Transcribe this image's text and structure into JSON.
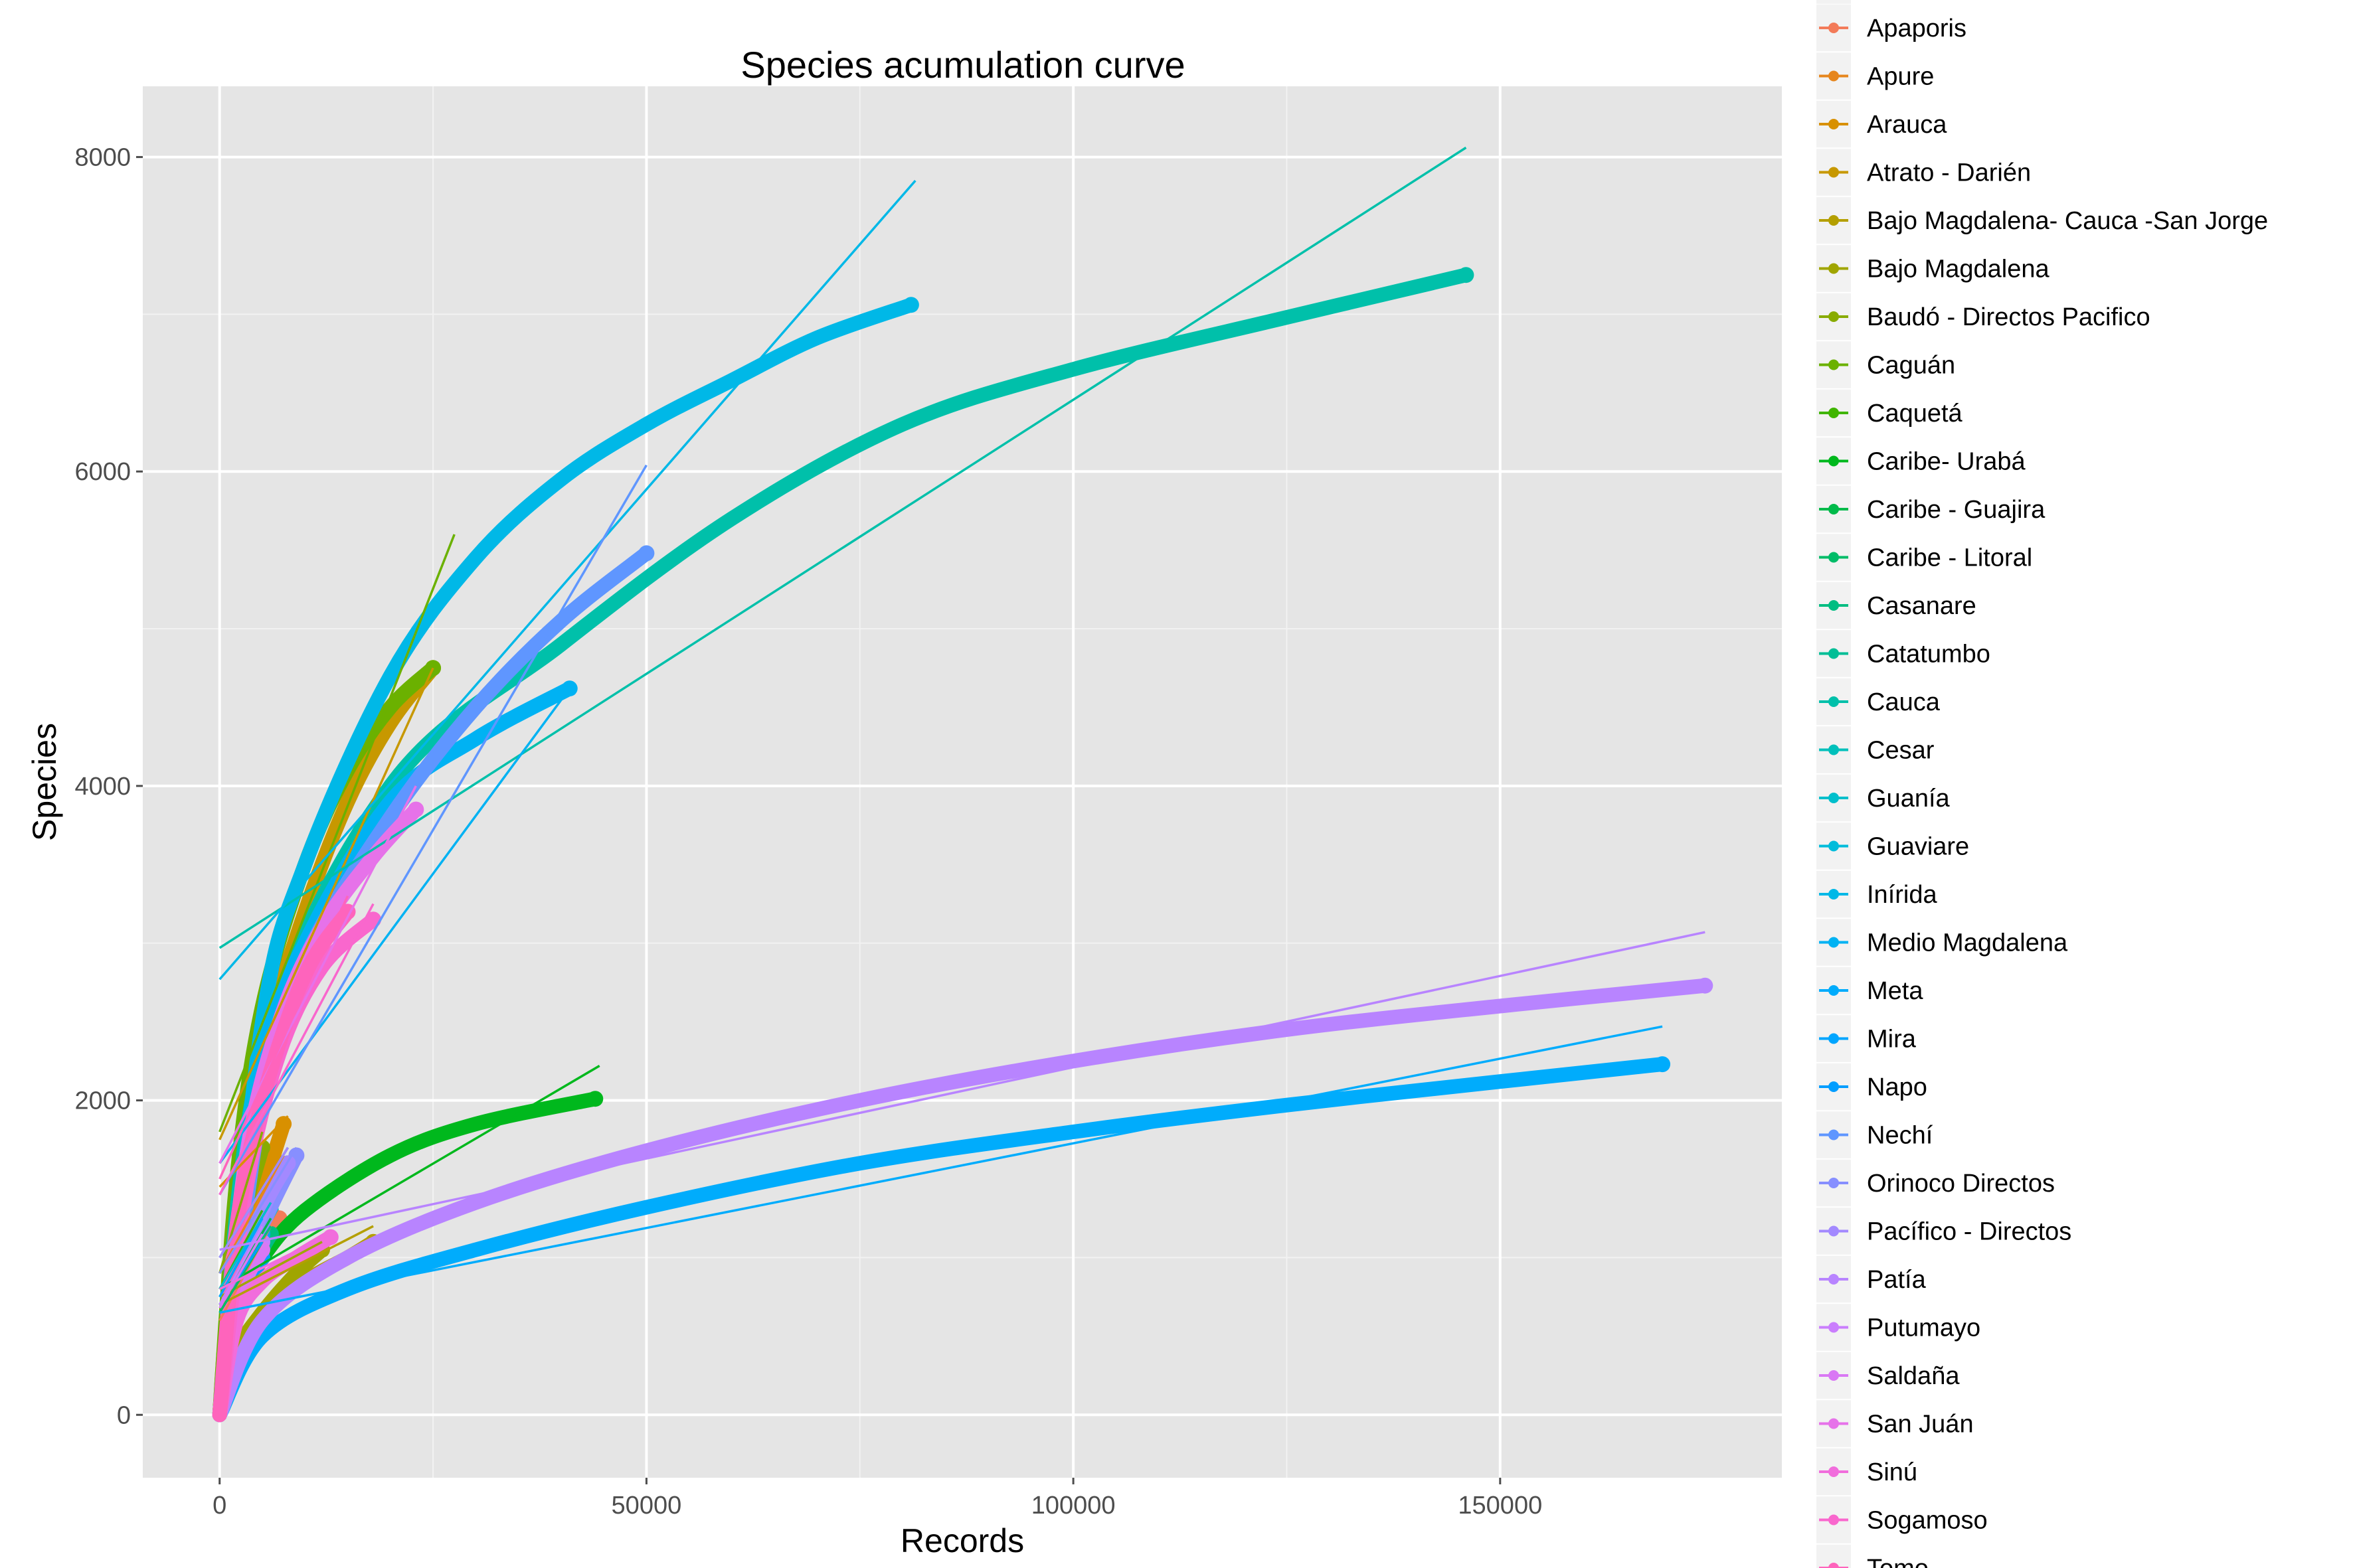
{
  "chart_data": {
    "type": "scatter",
    "title": "Species acumulation curve",
    "xlabel": "Records",
    "ylabel": "Species",
    "xlim": [
      -9000,
      183000
    ],
    "ylim": [
      -400,
      8450
    ],
    "x_ticks": [
      0,
      50000,
      100000,
      150000
    ],
    "x_tick_labels": [
      "0",
      "50000",
      "100000",
      "150000"
    ],
    "y_ticks": [
      0,
      2000,
      4000,
      6000,
      8000
    ],
    "y_tick_labels": [
      "0",
      "2000",
      "4000",
      "6000",
      "8000"
    ],
    "grid": true,
    "background": "#e5e5e5",
    "legend_position": "right",
    "legend_partially_cut": "top",
    "description": "Each series is a thick accumulation curve (points) with a thin straight fitted line in the same color",
    "series": [
      {
        "name": "Apaporis",
        "color": "#f37b59",
        "curve": [
          [
            0,
            0
          ],
          [
            1000,
            450
          ],
          [
            3000,
            780
          ],
          [
            5500,
            1050
          ],
          [
            7000,
            1250
          ]
        ],
        "fit": [
          [
            0,
            600
          ],
          [
            7000,
            1300
          ]
        ]
      },
      {
        "name": "Apure",
        "color": "#e6861d",
        "curve": [
          [
            0,
            0
          ],
          [
            1000,
            520
          ],
          [
            3000,
            950
          ],
          [
            5500,
            1400
          ],
          [
            7000,
            1600
          ]
        ],
        "fit": [
          [
            0,
            900
          ],
          [
            7500,
            1650
          ]
        ]
      },
      {
        "name": "Arauca",
        "color": "#d89000",
        "curve": [
          [
            0,
            0
          ],
          [
            1000,
            550
          ],
          [
            3000,
            1000
          ],
          [
            5500,
            1500
          ],
          [
            7500,
            1850
          ]
        ],
        "fit": [
          [
            0,
            1450
          ],
          [
            8000,
            1900
          ]
        ]
      },
      {
        "name": "Atrato - Darién",
        "color": "#c79800",
        "curve": [
          [
            0,
            0
          ],
          [
            2000,
            1300
          ],
          [
            5000,
            2300
          ],
          [
            10000,
            3200
          ],
          [
            15000,
            3900
          ],
          [
            20000,
            4400
          ],
          [
            25000,
            4750
          ]
        ],
        "fit": [
          [
            0,
            1750
          ],
          [
            25000,
            4750
          ]
        ]
      },
      {
        "name": "Bajo Magdalena- Cauca -San Jorge",
        "color": "#b49f00",
        "curve": [
          [
            0,
            0
          ],
          [
            2000,
            380
          ],
          [
            5000,
            620
          ],
          [
            10000,
            850
          ],
          [
            15000,
            1000
          ],
          [
            18000,
            1100
          ]
        ],
        "fit": [
          [
            0,
            700
          ],
          [
            18000,
            1200
          ]
        ]
      },
      {
        "name": "Bajo Magdalena",
        "color": "#a0a500",
        "curve": [
          [
            0,
            0
          ],
          [
            2000,
            400
          ],
          [
            5000,
            650
          ],
          [
            9000,
            900
          ],
          [
            12000,
            1050
          ]
        ],
        "fit": [
          [
            0,
            750
          ],
          [
            12000,
            1100
          ]
        ]
      },
      {
        "name": "Baudó - Directos Pacifico",
        "color": "#88ab00",
        "curve": [
          [
            0,
            0
          ],
          [
            1000,
            700
          ],
          [
            3000,
            1300
          ],
          [
            5000,
            1700
          ]
        ],
        "fit": [
          [
            0,
            900
          ],
          [
            5000,
            1800
          ]
        ]
      },
      {
        "name": "Caguán",
        "color": "#6bb100",
        "curve": [
          [
            0,
            0
          ],
          [
            2000,
            1500
          ],
          [
            5000,
            2600
          ],
          [
            10000,
            3500
          ],
          [
            15000,
            4100
          ],
          [
            20000,
            4500
          ],
          [
            25000,
            4750
          ]
        ],
        "fit": [
          [
            0,
            1800
          ],
          [
            27500,
            5600
          ]
        ]
      },
      {
        "name": "Caquetá",
        "color": "#40b500",
        "curve": [
          [
            0,
            0
          ],
          [
            1500,
            650
          ],
          [
            3500,
            1000
          ],
          [
            5000,
            1200
          ]
        ],
        "fit": [
          [
            0,
            800
          ],
          [
            5000,
            1300
          ]
        ]
      },
      {
        "name": "Caribe- Urabá",
        "color": "#00b81d",
        "curve": [
          [
            0,
            0
          ],
          [
            2000,
            700
          ],
          [
            5000,
            1000
          ],
          [
            10000,
            1300
          ],
          [
            20000,
            1650
          ],
          [
            30000,
            1850
          ],
          [
            44000,
            2010
          ]
        ],
        "fit": [
          [
            0,
            800
          ],
          [
            44500,
            2220
          ]
        ]
      },
      {
        "name": "Caribe - Guajira",
        "color": "#00ba4a",
        "curve": [
          [
            0,
            0
          ],
          [
            1000,
            500
          ],
          [
            3000,
            850
          ],
          [
            6000,
            1150
          ]
        ],
        "fit": [
          [
            0,
            700
          ],
          [
            6000,
            1250
          ]
        ]
      },
      {
        "name": "Caribe - Litoral",
        "color": "#00bc68",
        "curve": [
          [
            0,
            0
          ],
          [
            1000,
            450
          ],
          [
            3000,
            800
          ],
          [
            5000,
            1000
          ]
        ],
        "fit": [
          [
            0,
            650
          ],
          [
            5000,
            1100
          ]
        ]
      },
      {
        "name": "Casanare",
        "color": "#00bd81",
        "curve": [
          [
            0,
            0
          ],
          [
            1000,
            480
          ],
          [
            3000,
            850
          ],
          [
            6000,
            1150
          ]
        ],
        "fit": [
          [
            0,
            700
          ],
          [
            6000,
            1200
          ]
        ]
      },
      {
        "name": "Catatumbo",
        "color": "#00be96",
        "curve": [
          [
            0,
            0
          ],
          [
            2000,
            800
          ],
          [
            5000,
            1300
          ],
          [
            8000,
            1600
          ]
        ],
        "fit": [
          [
            0,
            1000
          ],
          [
            8000,
            1700
          ]
        ]
      },
      {
        "name": "Cauca",
        "color": "#00c0aa",
        "curve": [
          [
            0,
            0
          ],
          [
            5000,
            2300
          ],
          [
            20000,
            4000
          ],
          [
            40000,
            4900
          ],
          [
            60000,
            5700
          ],
          [
            80000,
            6300
          ],
          [
            100000,
            6650
          ],
          [
            125000,
            6980
          ],
          [
            146000,
            7250
          ]
        ],
        "fit": [
          [
            0,
            2970
          ],
          [
            146000,
            8060
          ]
        ]
      },
      {
        "name": "Cesar",
        "color": "#00c0bb",
        "curve": [
          [
            0,
            0
          ],
          [
            1000,
            500
          ],
          [
            3000,
            880
          ],
          [
            5000,
            1100
          ]
        ],
        "fit": [
          [
            0,
            700
          ],
          [
            5000,
            1200
          ]
        ]
      },
      {
        "name": "Guanía",
        "color": "#00bfcc",
        "curve": [
          [
            0,
            0
          ],
          [
            1000,
            550
          ],
          [
            3000,
            950
          ],
          [
            6000,
            1300
          ]
        ],
        "fit": [
          [
            0,
            800
          ],
          [
            6000,
            1350
          ]
        ]
      },
      {
        "name": "Guaviare",
        "color": "#00bcdb",
        "curve": [
          [
            0,
            0
          ],
          [
            1000,
            500
          ],
          [
            3000,
            900
          ],
          [
            5000,
            1150
          ]
        ],
        "fit": [
          [
            0,
            750
          ],
          [
            5000,
            1250
          ]
        ]
      },
      {
        "name": "Inírida",
        "color": "#00b8e7",
        "curve": [
          [
            0,
            0
          ],
          [
            5000,
            2500
          ],
          [
            10000,
            3500
          ],
          [
            20000,
            4700
          ],
          [
            30000,
            5450
          ],
          [
            40000,
            5950
          ],
          [
            50000,
            6300
          ],
          [
            60000,
            6580
          ],
          [
            70000,
            6850
          ],
          [
            81000,
            7060
          ]
        ],
        "fit": [
          [
            0,
            2770
          ],
          [
            81500,
            7850
          ]
        ]
      },
      {
        "name": "Medio Magdalena",
        "color": "#00b2f3",
        "curve": [
          [
            0,
            0
          ],
          [
            5000,
            2200
          ],
          [
            10000,
            3000
          ],
          [
            20000,
            3900
          ],
          [
            30000,
            4300
          ],
          [
            41000,
            4620
          ]
        ],
        "fit": [
          [
            0,
            1600
          ],
          [
            41000,
            4620
          ]
        ]
      },
      {
        "name": "Meta",
        "color": "#00acfc",
        "curve": [
          [
            0,
            0
          ],
          [
            5000,
            500
          ],
          [
            15000,
            800
          ],
          [
            30000,
            1050
          ],
          [
            50000,
            1320
          ],
          [
            75000,
            1600
          ],
          [
            100000,
            1800
          ],
          [
            125000,
            1970
          ],
          [
            150000,
            2120
          ],
          [
            169000,
            2230
          ]
        ],
        "fit": [
          [
            0,
            650
          ],
          [
            169000,
            2470
          ]
        ]
      },
      {
        "name": "Mira",
        "color": "#00a5ff",
        "curve": [
          [
            0,
            0
          ],
          [
            1000,
            500
          ],
          [
            3000,
            900
          ],
          [
            5000,
            1150
          ]
        ],
        "fit": [
          [
            0,
            750
          ],
          [
            5000,
            1250
          ]
        ]
      },
      {
        "name": "Napo",
        "color": "#009dff",
        "curve": [
          [
            0,
            0
          ],
          [
            1000,
            450
          ],
          [
            3000,
            800
          ],
          [
            5000,
            1000
          ]
        ],
        "fit": [
          [
            0,
            700
          ],
          [
            5000,
            1100
          ]
        ]
      },
      {
        "name": "Nechí",
        "color": "#5f96ff",
        "curve": [
          [
            0,
            0
          ],
          [
            5000,
            2000
          ],
          [
            10000,
            2900
          ],
          [
            20000,
            3800
          ],
          [
            30000,
            4500
          ],
          [
            40000,
            5050
          ],
          [
            50000,
            5480
          ]
        ],
        "fit": [
          [
            0,
            1400
          ],
          [
            50000,
            6040
          ]
        ]
      },
      {
        "name": "Orinoco Directos",
        "color": "#878fff",
        "curve": [
          [
            0,
            0
          ],
          [
            2000,
            700
          ],
          [
            5000,
            1200
          ],
          [
            9000,
            1650
          ]
        ],
        "fit": [
          [
            0,
            900
          ],
          [
            9000,
            1700
          ]
        ]
      },
      {
        "name": "Pacífico - Directos",
        "color": "#a389ff",
        "curve": [
          [
            0,
            0
          ],
          [
            2000,
            800
          ],
          [
            5000,
            1300
          ],
          [
            8000,
            1600
          ]
        ],
        "fit": [
          [
            0,
            1000
          ],
          [
            8000,
            1700
          ]
        ]
      },
      {
        "name": "Patía",
        "color": "#b884ff",
        "curve": [
          [
            0,
            0
          ],
          [
            5000,
            600
          ],
          [
            15000,
            1000
          ],
          [
            30000,
            1350
          ],
          [
            50000,
            1680
          ],
          [
            75000,
            2000
          ],
          [
            100000,
            2250
          ],
          [
            125000,
            2450
          ],
          [
            150000,
            2600
          ],
          [
            174000,
            2730
          ]
        ],
        "fit": [
          [
            0,
            1050
          ],
          [
            174000,
            3070
          ]
        ]
      },
      {
        "name": "Putumayo",
        "color": "#ca7efd",
        "curve": [
          [
            0,
            0
          ],
          [
            1000,
            500
          ],
          [
            3000,
            900
          ],
          [
            5000,
            1100
          ]
        ],
        "fit": [
          [
            0,
            700
          ],
          [
            5000,
            1200
          ]
        ]
      },
      {
        "name": "Saldaña",
        "color": "#d978f4",
        "curve": [
          [
            0,
            0
          ],
          [
            1000,
            480
          ],
          [
            3000,
            850
          ],
          [
            5000,
            1050
          ]
        ],
        "fit": [
          [
            0,
            680
          ],
          [
            5000,
            1150
          ]
        ]
      },
      {
        "name": "San Juán",
        "color": "#e672e9",
        "curve": [
          [
            0,
            0
          ],
          [
            3000,
            1600
          ],
          [
            7000,
            2500
          ],
          [
            12000,
            3100
          ],
          [
            18000,
            3550
          ],
          [
            23000,
            3850
          ]
        ],
        "fit": [
          [
            0,
            1600
          ],
          [
            23000,
            4000
          ]
        ]
      },
      {
        "name": "Sinú",
        "color": "#f16ddc",
        "curve": [
          [
            0,
            0
          ],
          [
            2000,
            600
          ],
          [
            5000,
            850
          ],
          [
            9000,
            1000
          ],
          [
            13000,
            1130
          ]
        ],
        "fit": [
          [
            0,
            800
          ],
          [
            13000,
            1150
          ]
        ]
      },
      {
        "name": "Sogamoso",
        "color": "#f967cd",
        "curve": [
          [
            0,
            0
          ],
          [
            3000,
            1400
          ],
          [
            7000,
            2300
          ],
          [
            12000,
            2850
          ],
          [
            18000,
            3150
          ]
        ],
        "fit": [
          [
            0,
            1400
          ],
          [
            18000,
            3250
          ]
        ]
      },
      {
        "name": "Tomo",
        "color": "#fe64bc",
        "curve": [
          [
            0,
            0
          ],
          [
            2000,
            1200
          ],
          [
            5000,
            2000
          ],
          [
            10000,
            2800
          ],
          [
            15000,
            3200
          ]
        ],
        "fit": [
          [
            0,
            1500
          ],
          [
            15000,
            3300
          ]
        ]
      }
    ]
  }
}
